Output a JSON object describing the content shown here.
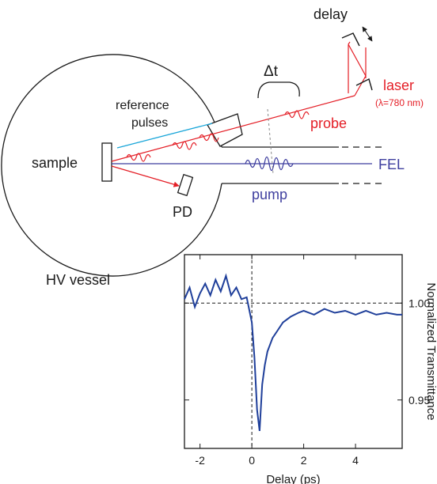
{
  "colors": {
    "red": "#e41e26",
    "blue": "#3f3f9f",
    "trace": "#1f3f9a",
    "cyan": "#1aa6d9",
    "black": "#1a1a1a"
  },
  "diagram": {
    "delay_label": "delay",
    "delta_t_label": "Δt",
    "laser_label": "laser",
    "lambda_label": "(λ=780 nm)",
    "probe_label": "probe",
    "reference_label_line1": "reference",
    "reference_label_line2": "pulses",
    "sample_label": "sample",
    "fel_label": "FEL",
    "pump_label": "pump",
    "pd_label": "PD",
    "vessel_label": "HV vessel"
  },
  "chart_data": {
    "type": "line",
    "xlabel": "Delay (ps)",
    "ylabel": "Normalized Transmittance",
    "xlim": [
      -2.6,
      5.8
    ],
    "ylim": [
      0.925,
      1.025
    ],
    "xticks": [
      -2,
      0,
      2,
      4
    ],
    "yticks": [
      0.95,
      1.0
    ],
    "ytick_labels": [
      "0.95",
      "1.00"
    ],
    "reference_lines": {
      "x": 0,
      "y": 1.0
    },
    "series": [
      {
        "x": [
          -2.6,
          -2.4,
          -2.2,
          -2.0,
          -1.8,
          -1.6,
          -1.4,
          -1.2,
          -1.0,
          -0.8,
          -0.6,
          -0.4,
          -0.2,
          0.0,
          0.1,
          0.2,
          0.3,
          0.4,
          0.5,
          0.6,
          0.8,
          1.0,
          1.2,
          1.5,
          1.8,
          2.0,
          2.4,
          2.8,
          3.2,
          3.6,
          4.0,
          4.4,
          4.8,
          5.2,
          5.6,
          5.8
        ],
        "y": [
          1.002,
          1.008,
          0.998,
          1.005,
          1.01,
          1.004,
          1.012,
          1.006,
          1.014,
          1.004,
          1.008,
          1.002,
          1.003,
          0.99,
          0.972,
          0.945,
          0.934,
          0.958,
          0.968,
          0.975,
          0.982,
          0.986,
          0.99,
          0.993,
          0.995,
          0.996,
          0.994,
          0.997,
          0.995,
          0.996,
          0.994,
          0.996,
          0.994,
          0.995,
          0.994,
          0.994
        ]
      }
    ]
  }
}
